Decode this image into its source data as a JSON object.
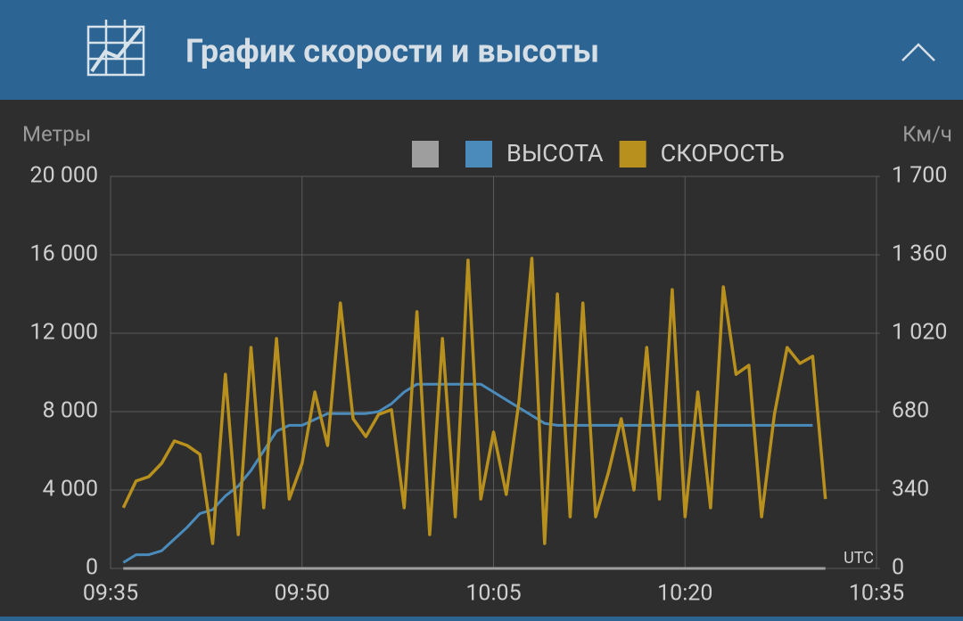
{
  "header": {
    "title": "График скорости и высоты"
  },
  "chart_data": {
    "type": "line",
    "y_label": "Метры",
    "y2_label": "Км/ч",
    "x_label": "UTC",
    "x": [
      "09:36",
      "09:37",
      "09:38",
      "09:39",
      "09:40",
      "09:41",
      "09:42",
      "09:43",
      "09:44",
      "09:45",
      "09:46",
      "09:47",
      "09:48",
      "09:49",
      "09:50",
      "09:51",
      "09:52",
      "09:53",
      "09:54",
      "09:55",
      "09:56",
      "09:57",
      "09:58",
      "09:59",
      "10:00",
      "10:01",
      "10:02",
      "10:03",
      "10:04",
      "10:05",
      "10:06",
      "10:07",
      "10:08",
      "10:09",
      "10:10",
      "10:11",
      "10:12",
      "10:13",
      "10:14",
      "10:15",
      "10:16",
      "10:17",
      "10:18",
      "10:19",
      "10:20",
      "10:21",
      "10:22",
      "10:23",
      "10:24",
      "10:25",
      "10:26",
      "10:27",
      "10:28",
      "10:29",
      "10:30",
      "10:31"
    ],
    "series": [
      {
        "color": "#9e9e9e",
        "values": [
          0,
          0,
          0,
          0,
          0,
          0,
          0,
          0,
          0,
          0,
          0,
          0,
          0,
          0,
          0,
          0,
          0,
          0,
          0,
          0,
          0,
          0,
          0,
          0,
          0,
          0,
          0,
          0,
          0,
          0,
          0,
          0,
          0,
          0,
          0,
          0,
          0,
          0,
          0,
          0,
          0,
          0,
          0,
          0,
          0,
          0,
          0,
          0,
          0,
          0,
          0,
          0,
          0,
          0,
          0,
          0
        ]
      },
      {
        "name": "ВЫСОТА",
        "color": "#4a8bbb",
        "values": [
          300,
          700,
          700,
          900,
          1500,
          2100,
          2800,
          3000,
          3700,
          4200,
          5000,
          6000,
          7000,
          7300,
          7300,
          7600,
          7900,
          7900,
          7900,
          7900,
          8000,
          8400,
          9000,
          9400,
          9400,
          9400,
          9400,
          9400,
          9400,
          9000,
          8600,
          8200,
          7800,
          7400,
          7300,
          7300,
          7300,
          7300,
          7300,
          7300,
          7300,
          7300,
          7300,
          7300,
          7300,
          7300,
          7300,
          7300,
          7300,
          7300,
          7300,
          7300,
          7300,
          7300,
          7300,
          null
        ]
      },
      {
        "name": "СКОРОСТЬ",
        "color": "#b8901e",
        "axis": "y2",
        "values": [
          263,
          379,
          398,
          456,
          553,
          533,
          495,
          108,
          842,
          147,
          958,
          263,
          997,
          301,
          456,
          765,
          533,
          1151,
          649,
          572,
          668,
          688,
          263,
          1113,
          147,
          997,
          224,
          1337,
          301,
          591,
          321,
          726,
          1345,
          108,
          1190,
          224,
          1151,
          224,
          417,
          649,
          340,
          958,
          301,
          1209,
          224,
          765,
          263,
          1221,
          842,
          881,
          224,
          668,
          958,
          889,
          920,
          301
        ]
      }
    ],
    "xlim": [
      "09:35",
      "10:35"
    ],
    "xticks": [
      "09:35",
      "09:50",
      "10:05",
      "10:20",
      "10:35"
    ],
    "ylim": [
      0,
      20000
    ],
    "yticks": [
      0,
      {
        "value": 4000,
        "label": "4 000"
      },
      {
        "value": 8000,
        "label": "8 000"
      },
      {
        "value": 12000,
        "label": "12 000"
      },
      {
        "value": 16000,
        "label": "16 000"
      },
      {
        "value": 20000,
        "label": "20 000"
      }
    ],
    "y2lim": [
      0,
      1700
    ],
    "y2ticks": [
      0,
      340,
      680,
      {
        "value": 1020,
        "label": "1 020"
      },
      {
        "value": 1360,
        "label": "1 360"
      },
      {
        "value": 1700,
        "label": "1 700"
      }
    ],
    "grid": true
  }
}
